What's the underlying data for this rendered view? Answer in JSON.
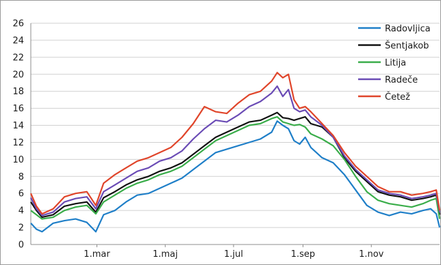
{
  "chart_data": {
    "type": "line",
    "title": "",
    "xlabel": "",
    "ylabel": "",
    "ylim": [
      0,
      26
    ],
    "y_ticks": [
      0,
      2,
      4,
      6,
      8,
      10,
      12,
      14,
      16,
      18,
      20,
      22,
      24,
      26
    ],
    "x_ticks": [
      {
        "day": 59,
        "label": "1.mar"
      },
      {
        "day": 120,
        "label": "1.maj"
      },
      {
        "day": 181,
        "label": "1.jul"
      },
      {
        "day": 243,
        "label": "1.sep"
      },
      {
        "day": 304,
        "label": "1.nov"
      }
    ],
    "xlim": [
      0,
      365
    ],
    "grid": "horizontal",
    "legend_position": "top-right",
    "series": [
      {
        "name": "Radovljica",
        "color": "#1f7fc8",
        "x": [
          0,
          5,
          10,
          20,
          30,
          40,
          50,
          58,
          65,
          75,
          85,
          95,
          105,
          115,
          125,
          135,
          145,
          155,
          165,
          175,
          185,
          195,
          205,
          215,
          220,
          225,
          230,
          235,
          240,
          245,
          250,
          260,
          270,
          280,
          290,
          300,
          310,
          320,
          330,
          340,
          350,
          357,
          362,
          365
        ],
        "y": [
          2.5,
          1.8,
          1.5,
          2.5,
          2.8,
          3.0,
          2.6,
          1.5,
          3.5,
          4.0,
          5.0,
          5.8,
          6.0,
          6.6,
          7.2,
          7.8,
          8.8,
          9.8,
          10.8,
          11.2,
          11.6,
          12.0,
          12.4,
          13.2,
          14.5,
          14.0,
          13.6,
          12.2,
          11.8,
          12.6,
          11.4,
          10.2,
          9.6,
          8.2,
          6.4,
          4.6,
          3.8,
          3.4,
          3.8,
          3.6,
          4.0,
          4.2,
          3.6,
          2.0
        ]
      },
      {
        "name": "Šentjakob",
        "color": "#111111",
        "x": [
          0,
          5,
          10,
          20,
          30,
          40,
          50,
          58,
          65,
          75,
          85,
          95,
          105,
          115,
          125,
          135,
          145,
          155,
          165,
          175,
          185,
          195,
          205,
          215,
          220,
          225,
          230,
          235,
          240,
          245,
          250,
          260,
          270,
          280,
          290,
          300,
          310,
          320,
          330,
          340,
          350,
          357,
          362,
          365
        ],
        "y": [
          5.0,
          4.0,
          3.2,
          3.5,
          4.5,
          4.8,
          5.0,
          3.8,
          5.5,
          6.2,
          7.0,
          7.6,
          8.0,
          8.6,
          9.0,
          9.6,
          10.6,
          11.6,
          12.6,
          13.2,
          13.8,
          14.4,
          14.6,
          15.2,
          15.5,
          14.9,
          14.8,
          14.6,
          14.8,
          15.0,
          14.2,
          13.8,
          12.6,
          10.2,
          8.6,
          7.4,
          6.2,
          5.8,
          5.6,
          5.2,
          5.4,
          5.6,
          5.8,
          3.5
        ]
      },
      {
        "name": "Litija",
        "color": "#3aad4a",
        "x": [
          0,
          5,
          10,
          20,
          30,
          40,
          50,
          58,
          65,
          75,
          85,
          95,
          105,
          115,
          125,
          135,
          145,
          155,
          165,
          175,
          185,
          195,
          205,
          215,
          220,
          225,
          230,
          235,
          240,
          245,
          250,
          260,
          270,
          280,
          290,
          300,
          310,
          320,
          330,
          340,
          350,
          357,
          362,
          365
        ],
        "y": [
          4.0,
          3.5,
          3.0,
          3.2,
          4.0,
          4.4,
          4.6,
          3.6,
          5.0,
          5.8,
          6.6,
          7.2,
          7.6,
          8.2,
          8.6,
          9.2,
          10.2,
          11.2,
          12.2,
          12.8,
          13.4,
          14.0,
          14.2,
          14.8,
          15.0,
          14.4,
          14.2,
          14.0,
          14.1,
          13.8,
          13.0,
          12.4,
          11.6,
          10.0,
          8.0,
          6.2,
          5.2,
          4.8,
          4.6,
          4.4,
          4.8,
          5.2,
          5.4,
          3.0
        ]
      },
      {
        "name": "Radeče",
        "color": "#6a4bb5",
        "x": [
          0,
          5,
          10,
          20,
          30,
          40,
          50,
          58,
          65,
          75,
          85,
          95,
          105,
          115,
          125,
          135,
          145,
          155,
          165,
          175,
          185,
          195,
          205,
          215,
          220,
          225,
          230,
          235,
          240,
          245,
          250,
          260,
          270,
          280,
          290,
          300,
          310,
          320,
          330,
          340,
          350,
          357,
          362,
          365
        ],
        "y": [
          5.5,
          4.2,
          3.4,
          3.8,
          5.0,
          5.4,
          5.6,
          4.2,
          6.2,
          7.0,
          7.8,
          8.6,
          9.0,
          9.8,
          10.2,
          11.0,
          12.4,
          13.6,
          14.6,
          14.4,
          15.2,
          16.2,
          16.8,
          17.8,
          18.6,
          17.4,
          18.2,
          16.0,
          15.6,
          15.8,
          15.0,
          14.0,
          12.6,
          10.4,
          8.8,
          7.6,
          6.4,
          6.0,
          5.8,
          5.4,
          5.6,
          5.8,
          6.0,
          3.8
        ]
      },
      {
        "name": "Četež",
        "color": "#e0452a",
        "x": [
          0,
          5,
          10,
          20,
          30,
          40,
          50,
          58,
          65,
          75,
          85,
          95,
          105,
          115,
          125,
          135,
          145,
          155,
          165,
          175,
          185,
          195,
          205,
          215,
          220,
          225,
          230,
          235,
          240,
          245,
          250,
          260,
          270,
          280,
          290,
          300,
          310,
          320,
          330,
          340,
          350,
          357,
          362,
          365
        ],
        "y": [
          6.0,
          4.5,
          3.6,
          4.2,
          5.6,
          6.0,
          6.2,
          4.6,
          7.2,
          8.2,
          9.0,
          9.8,
          10.2,
          10.8,
          11.4,
          12.6,
          14.2,
          16.2,
          15.6,
          15.4,
          16.6,
          17.6,
          18.0,
          19.2,
          20.2,
          19.6,
          20.0,
          17.0,
          16.0,
          16.2,
          15.6,
          14.2,
          12.8,
          10.8,
          9.2,
          8.0,
          6.8,
          6.2,
          6.2,
          5.8,
          6.0,
          6.2,
          6.4,
          4.0
        ]
      }
    ]
  }
}
